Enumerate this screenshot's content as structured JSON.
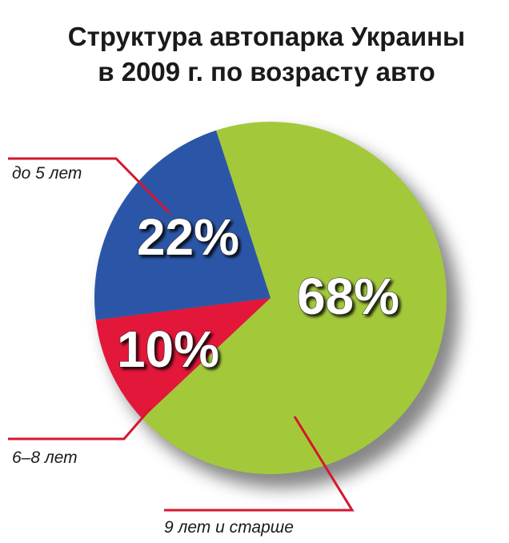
{
  "chart_data": {
    "type": "pie",
    "title": [
      "Структура автопарка Украины",
      "в 2009 г. по возрасту авто"
    ],
    "categories": [
      "9 лет и старше",
      "6–8 лет",
      "до 5 лет"
    ],
    "values": [
      68,
      10,
      22
    ],
    "value_labels": [
      "68%",
      "10%",
      "22%"
    ],
    "colors": [
      "#a3c93b",
      "#e3173a",
      "#2b56a8"
    ]
  }
}
